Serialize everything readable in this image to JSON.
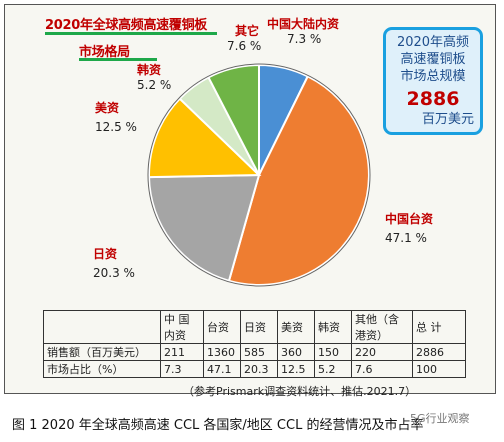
{
  "title_line1": "2020年全球高频高速覆铜板",
  "title_line2": "市场格局",
  "total_box": {
    "line1": "2020年高频",
    "line2": "高速覆铜板",
    "line3": "市场总规模",
    "value": "2886",
    "unit": "百万美元"
  },
  "slice_labels": [
    {
      "name": "中国大陆内资",
      "pct": "7.3 %"
    },
    {
      "name": "中国台资",
      "pct": "47.1 %"
    },
    {
      "name": "日资",
      "pct": "20.3 %"
    },
    {
      "name": "美资",
      "pct": "12.5 %"
    },
    {
      "name": "韩资",
      "pct": "5.2 %"
    },
    {
      "name": "其它",
      "pct": "7.6 %"
    }
  ],
  "table": {
    "headers": [
      "中 国内资",
      "台资",
      "日资",
      "美资",
      "韩资",
      "其他（含港资）",
      "总 计"
    ],
    "rows": [
      {
        "label": "销售额（百万美元）",
        "cells": [
          "211",
          "1360",
          "585",
          "360",
          "150",
          "220",
          "2886"
        ]
      },
      {
        "label": "市场占比（%）",
        "cells": [
          "7.3",
          "47.1",
          "20.3",
          "12.5",
          "5.2",
          "7.6",
          "100"
        ]
      }
    ]
  },
  "source_note": "（参考Prismark调查资料统计、推估.2021.7）",
  "caption": "图 1 2020 年全球高频高速 CCL 各国家/地区 CCL 的经营情况及市占率",
  "watermark": "5G行业观察",
  "chart_data": {
    "type": "pie",
    "title": "2020年全球高频高速覆铜板市场格局",
    "slices": [
      {
        "label": "中国大陆内资",
        "value": 7.3,
        "sales": 211,
        "color": "#4a8fd4"
      },
      {
        "label": "中国台资",
        "value": 47.1,
        "sales": 1360,
        "color": "#ee7d31"
      },
      {
        "label": "日资",
        "value": 20.3,
        "sales": 585,
        "color": "#a5a5a5"
      },
      {
        "label": "美资",
        "value": 12.5,
        "sales": 360,
        "color": "#ffc000"
      },
      {
        "label": "韩资",
        "value": 5.2,
        "sales": 150,
        "color": "#d4e9c6"
      },
      {
        "label": "其它",
        "value": 7.6,
        "sales": 220,
        "color": "#6fb446"
      }
    ],
    "total": 2886,
    "unit": "百万美元"
  }
}
